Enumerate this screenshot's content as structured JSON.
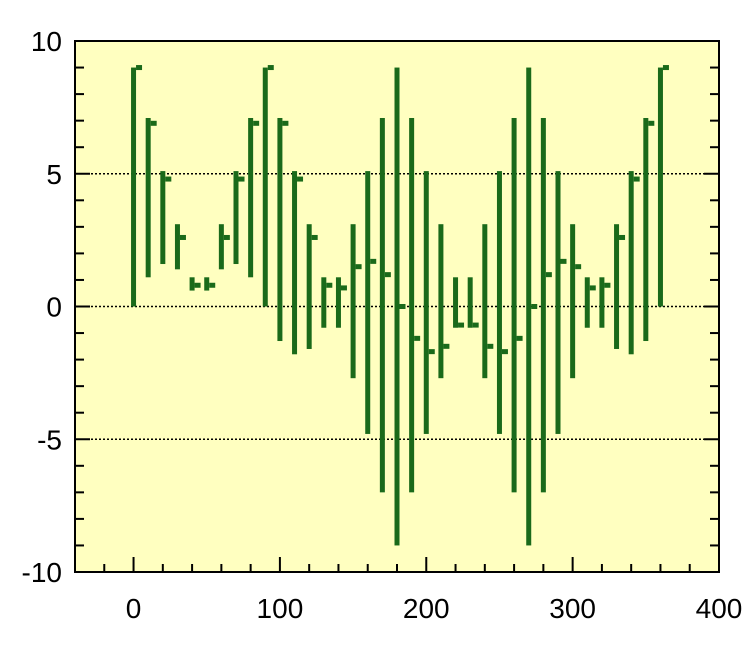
{
  "chart_data": {
    "type": "hilo",
    "title": "",
    "xlabel": "",
    "ylabel": "",
    "xlim": [
      -40,
      400
    ],
    "ylim": [
      -10,
      10
    ],
    "x_ticks": [
      0,
      100,
      200,
      300,
      400
    ],
    "x_tick_labels": [
      "0",
      "100",
      "200",
      "300",
      "400"
    ],
    "y_ticks": [
      -10,
      -5,
      0,
      5,
      10
    ],
    "y_tick_labels": [
      "-10",
      "-5",
      "0",
      "5",
      "10"
    ],
    "gridlines_y": [
      -5,
      0,
      5
    ],
    "grid": "horizontal dotted",
    "colors": {
      "plot_background": "#FFFFC0",
      "series": "#1A6A1A",
      "axes": "#000000"
    },
    "series": [
      {
        "points": [
          {
            "x": 0,
            "low": 0.0,
            "high": 9.0,
            "close": 9.0
          },
          {
            "x": 10,
            "low": 1.1,
            "high": 7.1,
            "close": 6.9
          },
          {
            "x": 20,
            "low": 1.6,
            "high": 5.1,
            "close": 4.8
          },
          {
            "x": 30,
            "low": 1.4,
            "high": 3.1,
            "close": 2.6
          },
          {
            "x": 40,
            "low": 0.6,
            "high": 1.1,
            "close": 0.8
          },
          {
            "x": 50,
            "low": 0.6,
            "high": 1.1,
            "close": 0.8
          },
          {
            "x": 60,
            "low": 1.4,
            "high": 3.1,
            "close": 2.6
          },
          {
            "x": 70,
            "low": 1.6,
            "high": 5.1,
            "close": 4.8
          },
          {
            "x": 80,
            "low": 1.1,
            "high": 7.1,
            "close": 6.9
          },
          {
            "x": 90,
            "low": 0.0,
            "high": 9.0,
            "close": 9.0
          },
          {
            "x": 100,
            "low": -1.3,
            "high": 7.1,
            "close": 6.9
          },
          {
            "x": 110,
            "low": -1.8,
            "high": 5.1,
            "close": 4.8
          },
          {
            "x": 120,
            "low": -1.6,
            "high": 3.1,
            "close": 2.6
          },
          {
            "x": 130,
            "low": -0.8,
            "high": 1.1,
            "close": 0.8
          },
          {
            "x": 140,
            "low": -0.8,
            "high": 1.1,
            "close": 0.7
          },
          {
            "x": 150,
            "low": -2.7,
            "high": 3.1,
            "close": 1.5
          },
          {
            "x": 160,
            "low": -4.8,
            "high": 5.1,
            "close": 1.7
          },
          {
            "x": 170,
            "low": -7.0,
            "high": 7.1,
            "close": 1.2
          },
          {
            "x": 180,
            "low": -9.0,
            "high": 9.0,
            "close": 0.0
          },
          {
            "x": 190,
            "low": -7.0,
            "high": 7.1,
            "close": -1.2
          },
          {
            "x": 200,
            "low": -4.8,
            "high": 5.1,
            "close": -1.7
          },
          {
            "x": 210,
            "low": -2.7,
            "high": 3.1,
            "close": -1.5
          },
          {
            "x": 220,
            "low": -0.8,
            "high": 1.1,
            "close": -0.7
          },
          {
            "x": 230,
            "low": -0.8,
            "high": 1.1,
            "close": -0.7
          },
          {
            "x": 240,
            "low": -2.7,
            "high": 3.1,
            "close": -1.5
          },
          {
            "x": 250,
            "low": -4.8,
            "high": 5.1,
            "close": -1.7
          },
          {
            "x": 260,
            "low": -7.0,
            "high": 7.1,
            "close": -1.2
          },
          {
            "x": 270,
            "low": -9.0,
            "high": 9.0,
            "close": 0.0
          },
          {
            "x": 280,
            "low": -7.0,
            "high": 7.1,
            "close": 1.2
          },
          {
            "x": 290,
            "low": -4.8,
            "high": 5.1,
            "close": 1.7
          },
          {
            "x": 300,
            "low": -2.7,
            "high": 3.1,
            "close": 1.5
          },
          {
            "x": 310,
            "low": -0.8,
            "high": 1.1,
            "close": 0.7
          },
          {
            "x": 320,
            "low": -0.8,
            "high": 1.1,
            "close": 0.8
          },
          {
            "x": 330,
            "low": -1.6,
            "high": 3.1,
            "close": 2.6
          },
          {
            "x": 340,
            "low": -1.8,
            "high": 5.1,
            "close": 4.8
          },
          {
            "x": 350,
            "low": -1.3,
            "high": 7.1,
            "close": 6.9
          },
          {
            "x": 360,
            "low": 0.0,
            "high": 9.0,
            "close": 9.0
          }
        ]
      }
    ]
  }
}
